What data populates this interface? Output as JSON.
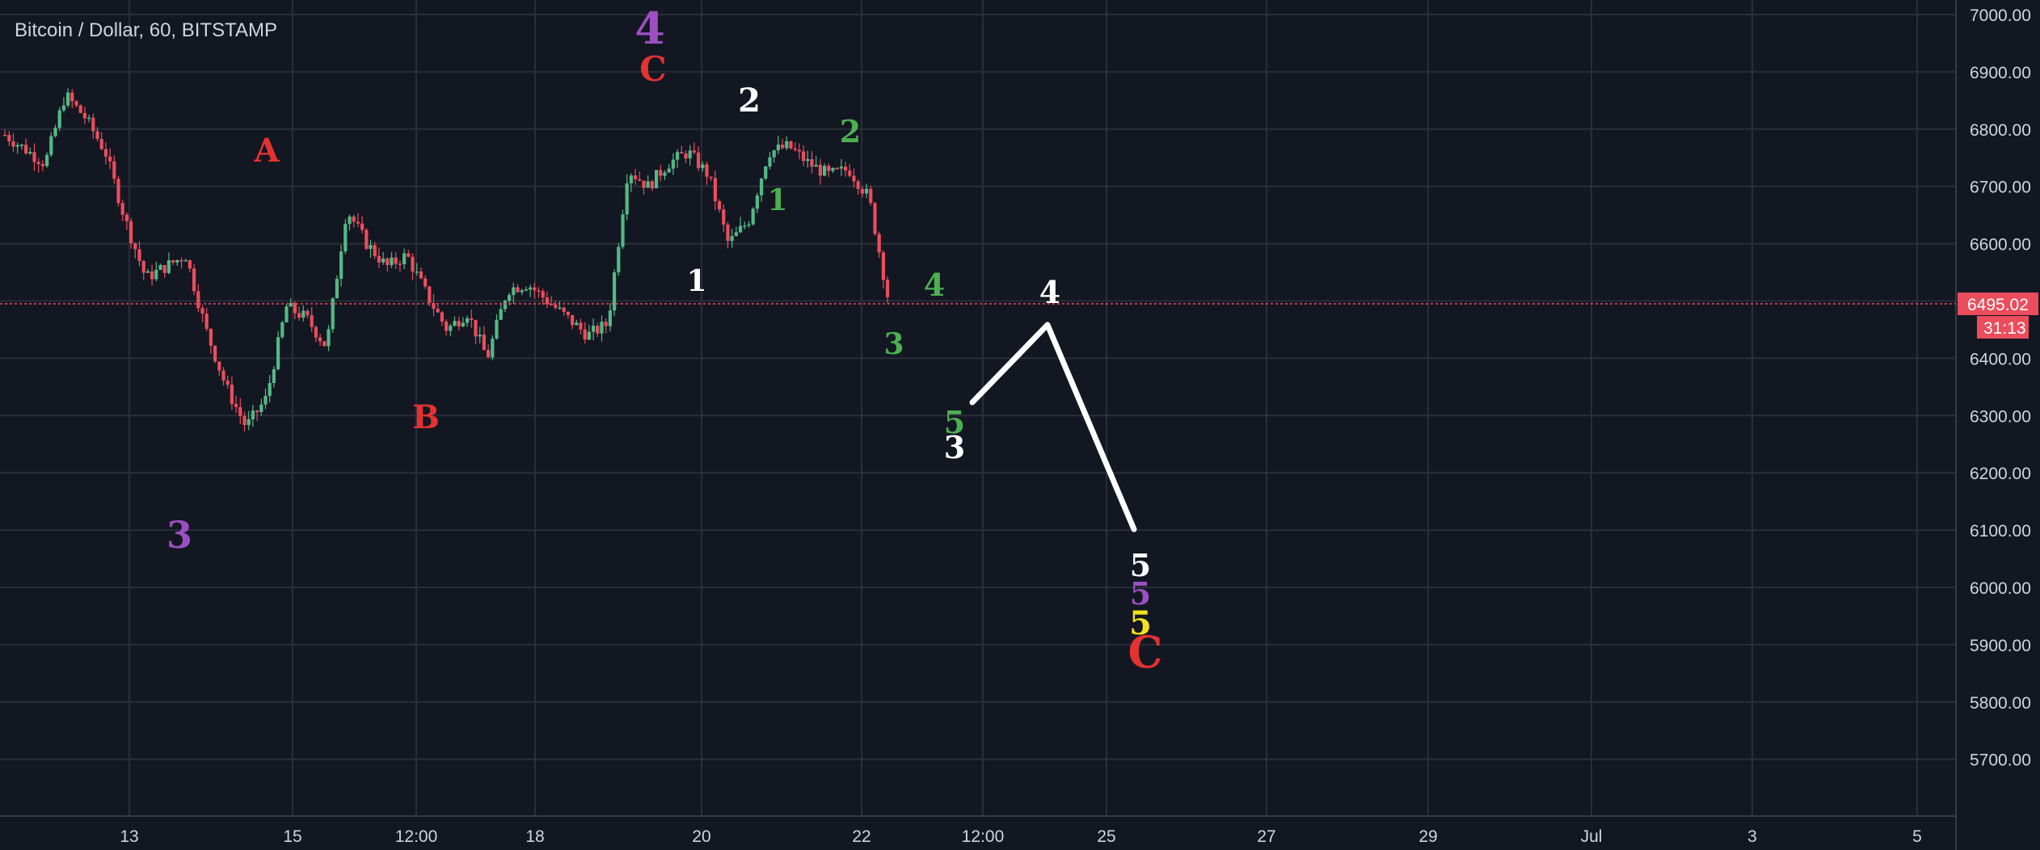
{
  "symbol_title": "Bitcoin / Dollar, 60, BITSTAMP",
  "colors": {
    "background": "#131722",
    "grid": "#2a2e39",
    "up": "#53b987",
    "down": "#eb4d5c",
    "axis_text": "#d1d4dc",
    "price_label_bg": "#eb4d5c"
  },
  "chart_data": {
    "type": "candlestick",
    "title": "Bitcoin / Dollar, 60, BITSTAMP",
    "ylim": [
      5600,
      7000
    ],
    "y_ticks": [
      7000,
      6900,
      6800,
      6700,
      6600,
      6500,
      6400,
      6300,
      6200,
      6100,
      6000,
      5900,
      5800,
      5700
    ],
    "x_ticks": [
      "13",
      "15",
      "12:00",
      "18",
      "20",
      "22",
      "12:00",
      "25",
      "27",
      "29",
      "Jul",
      "3",
      "5"
    ],
    "last_price": "6495.02",
    "countdown": "31:13",
    "price_path": [
      [
        0,
        6790
      ],
      [
        2,
        6740
      ],
      [
        3,
        6860
      ],
      [
        4,
        6820
      ],
      [
        5,
        6760
      ],
      [
        6,
        6640
      ],
      [
        7,
        6540
      ],
      [
        8,
        6560
      ],
      [
        9,
        6580
      ],
      [
        10,
        6450
      ],
      [
        11,
        6350
      ],
      [
        12,
        6280
      ],
      [
        13,
        6330
      ],
      [
        14,
        6490
      ],
      [
        15,
        6470
      ],
      [
        16,
        6420
      ],
      [
        17,
        6660
      ],
      [
        18,
        6600
      ],
      [
        19,
        6560
      ],
      [
        20,
        6580
      ],
      [
        21,
        6510
      ],
      [
        22,
        6450
      ],
      [
        23,
        6480
      ],
      [
        24,
        6400
      ],
      [
        25,
        6520
      ],
      [
        26,
        6530
      ],
      [
        27,
        6500
      ],
      [
        28,
        6470
      ],
      [
        29,
        6440
      ],
      [
        30,
        6460
      ],
      [
        31,
        6730
      ],
      [
        32,
        6700
      ],
      [
        33,
        6740
      ],
      [
        34,
        6760
      ],
      [
        35,
        6720
      ],
      [
        36,
        6600
      ],
      [
        37,
        6640
      ],
      [
        38,
        6760
      ],
      [
        39,
        6770
      ],
      [
        40,
        6740
      ],
      [
        41,
        6720
      ],
      [
        42,
        6730
      ],
      [
        43,
        6680
      ],
      [
        44,
        6495
      ]
    ],
    "annotations": [
      {
        "text": "4",
        "color": "#9c4fc0"
      },
      {
        "text": "C",
        "color": "#e33232"
      },
      {
        "text": "2",
        "color": "#ffffff"
      },
      {
        "text": "2",
        "color": "#4caf50"
      },
      {
        "text": "A",
        "color": "#e33232"
      },
      {
        "text": "1",
        "color": "#4caf50"
      },
      {
        "text": "1",
        "color": "#ffffff"
      },
      {
        "text": "4",
        "color": "#4caf50"
      },
      {
        "text": "4",
        "color": "#ffffff"
      },
      {
        "text": "3",
        "color": "#4caf50"
      },
      {
        "text": "5",
        "color": "#4caf50"
      },
      {
        "text": "3",
        "color": "#ffffff"
      },
      {
        "text": "B",
        "color": "#e33232"
      },
      {
        "text": "3",
        "color": "#9c4fc0"
      },
      {
        "text": "5",
        "color": "#ffffff"
      },
      {
        "text": "5",
        "color": "#9c4fc0"
      },
      {
        "text": "5",
        "color": "#f5e11b"
      },
      {
        "text": "C",
        "color": "#e33232"
      }
    ],
    "projection": {
      "color": "#ffffff",
      "points": [
        [
          6320,
          0
        ],
        [
          6470,
          1
        ],
        [
          6100,
          2
        ]
      ]
    }
  }
}
